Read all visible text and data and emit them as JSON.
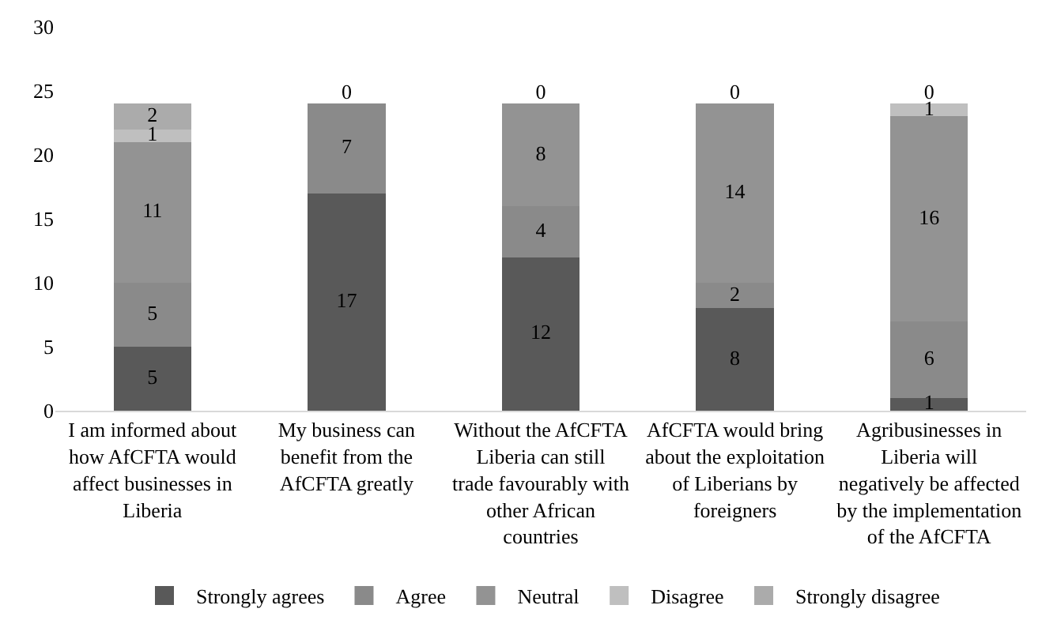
{
  "chart_data": {
    "type": "bar",
    "stacked": true,
    "categories": [
      "I am informed about how AfCFTA would affect businesses in Liberia",
      "My business can benefit from the AfCFTA greatly",
      "Without the AfCFTA Liberia can still trade favourably with other African countries",
      "AfCFTA would bring about the exploitation of Liberians by foreigners",
      "Agribusinesses in Liberia will negatively be affected by the implementation of the AfCFTA"
    ],
    "series": [
      {
        "name": "Strongly agrees",
        "color": "#595959",
        "values": [
          5,
          17,
          12,
          8,
          1
        ],
        "value_labels": [
          "5",
          "17",
          "12",
          "8",
          "1"
        ]
      },
      {
        "name": "Agree",
        "color": "#8a8a8a",
        "values": [
          5,
          7,
          4,
          2,
          6
        ],
        "value_labels": [
          "5",
          "7",
          "4",
          "2",
          "6"
        ]
      },
      {
        "name": "Neutral",
        "color": "#939393",
        "values": [
          11,
          0,
          8,
          14,
          16
        ],
        "value_labels": [
          "11",
          null,
          "8",
          "14",
          "16"
        ]
      },
      {
        "name": "Disagree",
        "color": "#bfbfbf",
        "values": [
          1,
          0,
          0,
          0,
          1
        ],
        "value_labels": [
          "1",
          null,
          null,
          null,
          "1"
        ]
      },
      {
        "name": "Strongly disagree",
        "color": "#ababab",
        "values": [
          2,
          0,
          0,
          0,
          0
        ],
        "value_labels": [
          "2",
          "0",
          "0",
          "0",
          "0"
        ]
      }
    ],
    "ylim": [
      0,
      30
    ],
    "yticks": [
      0,
      5,
      10,
      15,
      20,
      25,
      30
    ],
    "grid": false,
    "legend": "bottom"
  }
}
